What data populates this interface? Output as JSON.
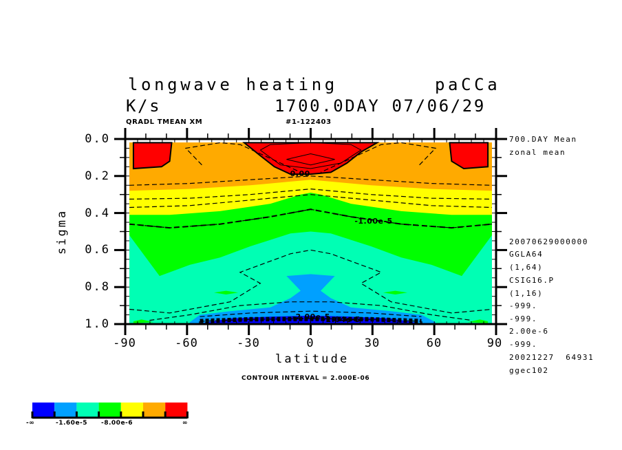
{
  "header": {
    "title": "longwave heating",
    "run_id": "paCCa",
    "units": "K/s",
    "time_label": "1700.0DAY 07/06/29",
    "variable_info": "QRADL TMEAN XM",
    "case_id": "#1-122403"
  },
  "side_info": {
    "lines": [
      "700.DAY Mean",
      "zonal mean"
    ],
    "meta_lines": [
      "20070629000000",
      "GGLA64",
      "(1,64)",
      "CSIG16.P",
      "(1,16)",
      "-999.",
      "-999.",
      "2.00e-6",
      "-999.",
      "20021227  64931",
      "ggec102"
    ]
  },
  "footer": {
    "contour_interval": "CONTOUR INTERVAL = 2.000E-06"
  },
  "colors": {
    "levels": [
      "#0000ff",
      "#00a0ff",
      "#00ffb4",
      "#00ff00",
      "#ffff00",
      "#ffaa00",
      "#ff0000"
    ]
  },
  "chart_data": {
    "type": "heatmap",
    "subtype": "filled-contour",
    "title": "longwave heating",
    "xlabel": "latitude",
    "ylabel": "sigma",
    "xlim": [
      -90,
      90
    ],
    "ylim": [
      1.0,
      0.0
    ],
    "x_ticks": [
      "-90",
      "-60",
      "-30",
      "0",
      "30",
      "60",
      "90"
    ],
    "x_tick_values": [
      -90,
      -60,
      -30,
      0,
      30,
      60,
      90
    ],
    "y_ticks": [
      "0.0",
      "0.2",
      "0.4",
      "0.6",
      "0.8",
      "1.0"
    ],
    "y_tick_values": [
      0.0,
      0.2,
      0.4,
      0.6,
      0.8,
      1.0
    ],
    "contour_interval": 2e-06,
    "contour_labels": [
      {
        "text": "0.00",
        "lat": -2,
        "sigma": 0.195
      },
      {
        "text": "-1.00e-5",
        "lat": 30,
        "sigma": 0.45
      },
      {
        "text": "-2.00e-5",
        "lat": -1,
        "sigma": 0.965
      },
      {
        "text": "-2.04e-5",
        "lat": 14,
        "sigma": 0.98
      }
    ],
    "legend": {
      "labels": [
        "-∞",
        "-1.60e-5",
        "-8.00e-6",
        "∞"
      ],
      "colors": [
        "#0000ff",
        "#00a0ff",
        "#00ffb4",
        "#00ff00",
        "#ffff00",
        "#ffaa00",
        "#ff0000"
      ]
    },
    "bands": [
      {
        "name": "mint",
        "color": "#00ffb4",
        "upper": [
          [
            -90,
            0.52
          ],
          [
            -75,
            0.74
          ],
          [
            -60,
            0.68
          ],
          [
            -45,
            0.64
          ],
          [
            -30,
            0.58
          ],
          [
            -10,
            0.51
          ],
          [
            0,
            0.5
          ],
          [
            10,
            0.51
          ],
          [
            30,
            0.58
          ],
          [
            45,
            0.64
          ],
          [
            60,
            0.68
          ],
          [
            75,
            0.74
          ],
          [
            90,
            0.52
          ]
        ]
      },
      {
        "name": "green",
        "color": "#00ff00",
        "upper": [
          [
            -90,
            0.41
          ],
          [
            -70,
            0.41
          ],
          [
            -45,
            0.39
          ],
          [
            -20,
            0.35
          ],
          [
            -5,
            0.3
          ],
          [
            0,
            0.29
          ],
          [
            5,
            0.3
          ],
          [
            20,
            0.35
          ],
          [
            45,
            0.39
          ],
          [
            70,
            0.41
          ],
          [
            90,
            0.41
          ]
        ]
      },
      {
        "name": "yellow",
        "color": "#ffff00",
        "upper": [
          [
            -90,
            0.28
          ],
          [
            -60,
            0.27
          ],
          [
            -30,
            0.25
          ],
          [
            -10,
            0.23
          ],
          [
            0,
            0.22
          ],
          [
            10,
            0.23
          ],
          [
            30,
            0.25
          ],
          [
            60,
            0.27
          ],
          [
            90,
            0.28
          ]
        ]
      },
      {
        "name": "orange",
        "color": "#ffaa00",
        "upper": [
          [
            -90,
            0.0
          ],
          [
            90,
            0.0
          ]
        ]
      }
    ],
    "red_regions": [
      [
        [
          -88,
          0.02
        ],
        [
          -69,
          0.02
        ],
        [
          -70,
          0.12
        ],
        [
          -74,
          0.15
        ],
        [
          -88,
          0.16
        ]
      ],
      [
        [
          -33,
          0.02
        ],
        [
          33,
          0.02
        ],
        [
          25,
          0.07
        ],
        [
          18,
          0.13
        ],
        [
          10,
          0.18
        ],
        [
          0,
          0.19
        ],
        [
          -10,
          0.19
        ],
        [
          -18,
          0.15
        ],
        [
          -25,
          0.09
        ]
      ],
      [
        [
          69,
          0.02
        ],
        [
          88,
          0.02
        ],
        [
          88,
          0.15
        ],
        [
          76,
          0.16
        ],
        [
          70,
          0.12
        ]
      ]
    ],
    "sky_region": [
      [
        -60,
        0.99
      ],
      [
        -55,
        0.95
      ],
      [
        -40,
        0.93
      ],
      [
        -20,
        0.91
      ],
      [
        -10,
        0.86
      ],
      [
        -5,
        0.82
      ],
      [
        -12,
        0.74
      ],
      [
        0,
        0.73
      ],
      [
        12,
        0.74
      ],
      [
        5,
        0.82
      ],
      [
        10,
        0.86
      ],
      [
        20,
        0.91
      ],
      [
        40,
        0.93
      ],
      [
        55,
        0.95
      ],
      [
        62,
        0.99
      ]
    ],
    "blue_region": [
      [
        -54,
        0.995
      ],
      [
        -40,
        0.97
      ],
      [
        -20,
        0.96
      ],
      [
        0,
        0.955
      ],
      [
        20,
        0.96
      ],
      [
        40,
        0.97
      ],
      [
        54,
        0.995
      ]
    ],
    "green_islands": [
      [
        [
          -48,
          0.83
        ],
        [
          -42,
          0.82
        ],
        [
          -36,
          0.83
        ],
        [
          -42,
          0.84
        ]
      ],
      [
        [
          36,
          0.83
        ],
        [
          42,
          0.82
        ],
        [
          48,
          0.83
        ],
        [
          42,
          0.84
        ]
      ],
      [
        [
          -88,
          0.985
        ],
        [
          -84,
          0.975
        ],
        [
          -78,
          0.99
        ],
        [
          -88,
          0.995
        ]
      ],
      [
        [
          78,
          0.99
        ],
        [
          84,
          0.975
        ],
        [
          88,
          0.985
        ],
        [
          88,
          0.995
        ]
      ]
    ],
    "dashed_contours": [
      [
        [
          -90,
          0.46
        ],
        [
          -70,
          0.48
        ],
        [
          -45,
          0.46
        ],
        [
          -20,
          0.42
        ],
        [
          0,
          0.38
        ],
        [
          20,
          0.42
        ],
        [
          45,
          0.46
        ],
        [
          70,
          0.48
        ],
        [
          90,
          0.46
        ]
      ],
      [
        [
          -90,
          0.37
        ],
        [
          -60,
          0.36
        ],
        [
          -30,
          0.33
        ],
        [
          0,
          0.3
        ],
        [
          30,
          0.33
        ],
        [
          60,
          0.36
        ],
        [
          90,
          0.37
        ]
      ],
      [
        [
          -90,
          0.325
        ],
        [
          -60,
          0.32
        ],
        [
          -30,
          0.3
        ],
        [
          0,
          0.27
        ],
        [
          30,
          0.3
        ],
        [
          60,
          0.32
        ],
        [
          90,
          0.325
        ]
      ],
      [
        [
          -90,
          0.25
        ],
        [
          -60,
          0.24
        ],
        [
          -30,
          0.22
        ],
        [
          0,
          0.2
        ],
        [
          30,
          0.22
        ],
        [
          60,
          0.24
        ],
        [
          90,
          0.25
        ]
      ],
      [
        [
          -54,
          0.14
        ],
        [
          -62,
          0.05
        ],
        [
          -45,
          0.02
        ],
        [
          -35,
          0.03
        ],
        [
          -25,
          0.08
        ],
        [
          -5,
          0.18
        ]
      ],
      [
        [
          54,
          0.14
        ],
        [
          62,
          0.05
        ],
        [
          45,
          0.02
        ],
        [
          35,
          0.03
        ],
        [
          25,
          0.08
        ],
        [
          5,
          0.18
        ]
      ],
      [
        [
          -90,
          0.92
        ],
        [
          -70,
          0.94
        ],
        [
          -40,
          0.88
        ],
        [
          -25,
          0.78
        ],
        [
          -35,
          0.72
        ],
        [
          -10,
          0.62
        ],
        [
          0,
          0.6
        ],
        [
          10,
          0.62
        ],
        [
          35,
          0.72
        ],
        [
          25,
          0.78
        ],
        [
          40,
          0.88
        ],
        [
          70,
          0.94
        ],
        [
          90,
          0.92
        ]
      ],
      [
        [
          -80,
          0.98
        ],
        [
          -60,
          0.95
        ],
        [
          -35,
          0.9
        ],
        [
          -10,
          0.88
        ],
        [
          0,
          0.88
        ],
        [
          10,
          0.88
        ],
        [
          35,
          0.9
        ],
        [
          60,
          0.95
        ],
        [
          80,
          0.98
        ]
      ],
      [
        [
          -55,
          0.96
        ],
        [
          -30,
          0.94
        ],
        [
          0,
          0.93
        ],
        [
          30,
          0.94
        ],
        [
          55,
          0.96
        ]
      ],
      [
        [
          -55,
          0.985
        ],
        [
          -30,
          0.975
        ],
        [
          0,
          0.97
        ],
        [
          30,
          0.975
        ],
        [
          55,
          0.985
        ]
      ]
    ],
    "solid_contours": [
      [
        [
          -25,
          0.06
        ],
        [
          -20,
          0.03
        ],
        [
          0,
          0.02
        ],
        [
          20,
          0.03
        ],
        [
          25,
          0.06
        ],
        [
          15,
          0.13
        ],
        [
          0,
          0.16
        ],
        [
          -15,
          0.14
        ],
        [
          -25,
          0.06
        ]
      ],
      [
        [
          -12,
          0.11
        ],
        [
          0,
          0.08
        ],
        [
          12,
          0.11
        ],
        [
          0,
          0.14
        ],
        [
          -12,
          0.11
        ]
      ]
    ]
  }
}
